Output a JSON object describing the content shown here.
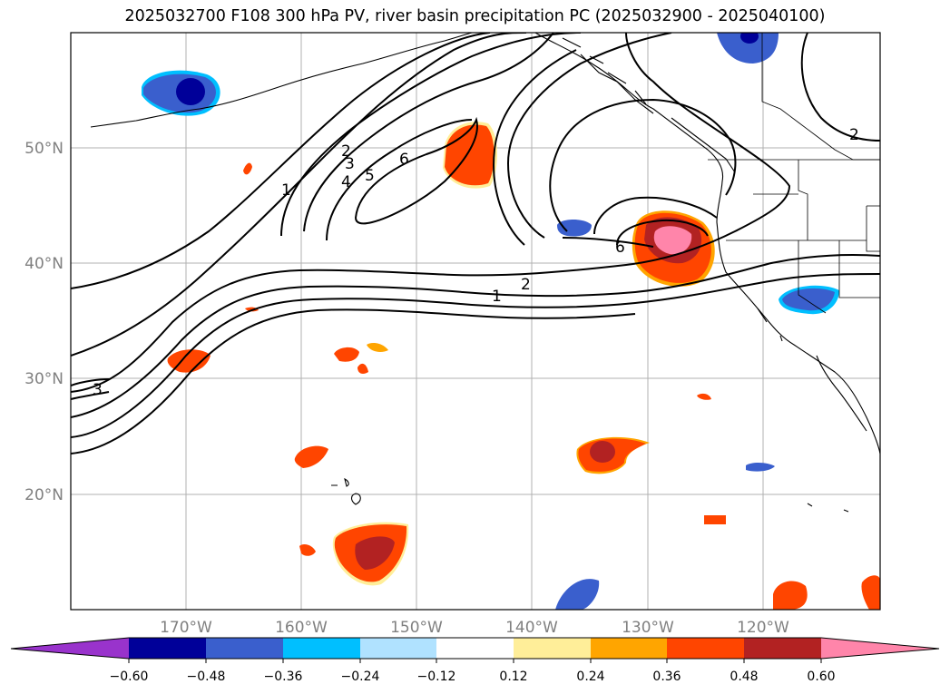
{
  "title": "2025032700 F108 300 hPa PV, river basin precipitation PC (2025032900 - 2025040100)",
  "lat_labels": [
    "50°N",
    "40°N",
    "30°N",
    "20°N"
  ],
  "lon_labels": [
    "170°W",
    "160°W",
    "150°W",
    "140°W",
    "130°W",
    "120°W"
  ],
  "colorbar": {
    "ticks": [
      "−0.60",
      "−0.48",
      "−0.36",
      "−0.24",
      "−0.12",
      "0.12",
      "0.24",
      "0.36",
      "0.48",
      "0.60"
    ],
    "colors": [
      "#9933cc",
      "#000099",
      "#3a5fcd",
      "#00bfff",
      "#b0e2ff",
      "#ffffff",
      "#ffee99",
      "#ffa500",
      "#ff4500",
      "#b22222",
      "#ff85aa"
    ]
  },
  "contour_labels": {
    "l1a": "1",
    "l2a": "2",
    "l3a": "3",
    "l4a": "4",
    "l5a": "5",
    "l6a": "6",
    "l6b": "6",
    "l2b": "2",
    "l1b": "1",
    "l3c": "3",
    "l2c": "2"
  }
}
